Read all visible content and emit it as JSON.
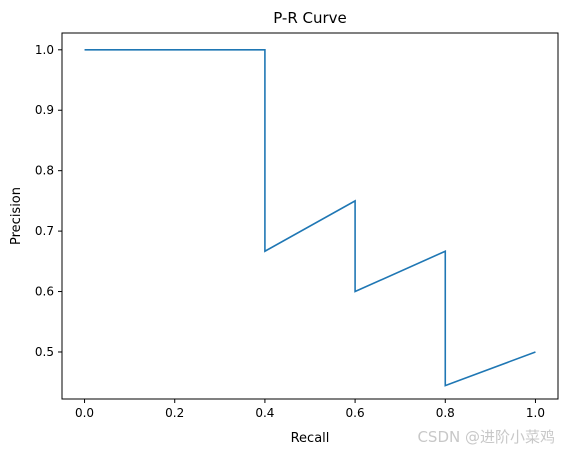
{
  "chart_data": {
    "type": "line",
    "title": "P-R Curve",
    "xlabel": "Recall",
    "ylabel": "Precision",
    "xlim": [
      -0.05,
      1.05
    ],
    "ylim": [
      0.4222,
      1.0278
    ],
    "xticks": [
      0.0,
      0.2,
      0.4,
      0.6,
      0.8,
      1.0
    ],
    "yticks": [
      0.5,
      0.6,
      0.7,
      0.8,
      0.9,
      1.0
    ],
    "grid": false,
    "series": [
      {
        "color": "#1f77b4",
        "x": [
          0.0,
          0.4,
          0.4,
          0.6,
          0.6,
          0.8,
          0.8,
          1.0
        ],
        "y": [
          1.0,
          1.0,
          0.6667,
          0.75,
          0.6,
          0.6667,
          0.4444,
          0.5
        ]
      }
    ]
  },
  "watermark": "CSDN @进阶小菜鸡"
}
